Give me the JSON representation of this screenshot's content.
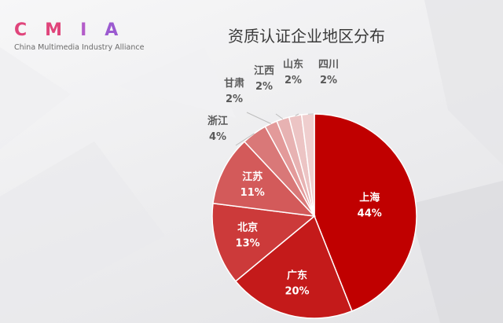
{
  "logo": {
    "letters": [
      "C",
      "M",
      "I",
      "A"
    ],
    "subtitle": "China Multimedia Industry Alliance"
  },
  "colors": {
    "accent": "#c00000",
    "slices": [
      "#c00000",
      "#c41a1a",
      "#cc3a3a",
      "#d35a5a",
      "#d97878",
      "#e39a9a",
      "#e7b2b2",
      "#ecc4c4",
      "#efcece"
    ]
  },
  "chart_data": {
    "type": "pie",
    "title": "资质认证企业地区分布",
    "categories": [
      "上海",
      "广东",
      "北京",
      "江苏",
      "浙江",
      "甘肃",
      "江西",
      "山东",
      "四川"
    ],
    "values": [
      44,
      20,
      13,
      11,
      4,
      2,
      2,
      2,
      2
    ],
    "labels": [
      "44%",
      "20%",
      "13%",
      "11%",
      "4%",
      "2%",
      "2%",
      "2%",
      "2%"
    ],
    "start": "12 o'clock",
    "direction": "clockwise",
    "legend": "none"
  }
}
